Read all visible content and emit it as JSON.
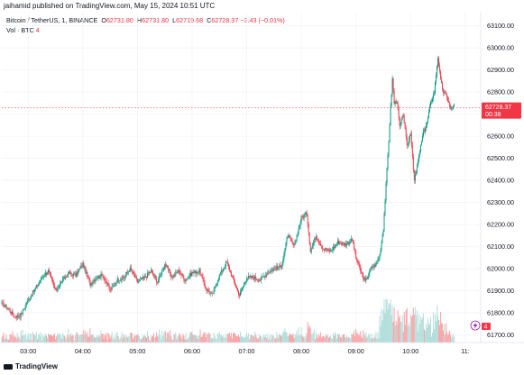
{
  "header": {
    "text": "jaihamid published on TradingView.com, May 15, 2024 10:51 UTC"
  },
  "legend": {
    "symbol": "Bitcoin / TetherUS, 1, BINANCE",
    "open_label": "O",
    "open_value": "62731.80",
    "high_label": "H",
    "high_value": "62731.80",
    "low_label": "L",
    "low_value": "62719.68",
    "close_label": "C",
    "close_value": "62728.37",
    "change": "−3.43 (−0.01%)",
    "volume_label": "Vol · BTC",
    "volume_value": "4"
  },
  "footer": {
    "logo_text": "TradingView"
  },
  "colors": {
    "up": "#089981",
    "down": "#f23645",
    "vol_up": "#b2dfdb",
    "vol_down": "#faa1a4",
    "last_price": "#f23645"
  },
  "chart_data": {
    "type": "candlestick",
    "y_ticks": [
      "63100.00",
      "63000.00",
      "62900.00",
      "62800.00",
      "62700.00",
      "62600.00",
      "62500.00",
      "62400.00",
      "62300.00",
      "62200.00",
      "62100.00",
      "62000.00",
      "61900.00",
      "61800.00",
      "61700.00"
    ],
    "y_tick_values": [
      63100,
      63000,
      62900,
      62800,
      62700,
      62600,
      62500,
      62400,
      62300,
      62200,
      62100,
      62000,
      61900,
      61800,
      61700
    ],
    "ylim": [
      61665,
      63160
    ],
    "x_ticks": [
      "03:00",
      "04:00",
      "05:00",
      "06:00",
      "07:00",
      "08:00",
      "09:00",
      "10:00",
      "11:"
    ],
    "x_tick_values": [
      180,
      240,
      300,
      360,
      420,
      480,
      540,
      600,
      660
    ],
    "xlim": [
      151,
      676
    ],
    "last_price": {
      "value": 62728.37,
      "label": "62728.37",
      "countdown": "00:38"
    },
    "volume_label": "4",
    "anchors": [
      [
        151,
        61840
      ],
      [
        158,
        61820
      ],
      [
        165,
        61780
      ],
      [
        172,
        61790
      ],
      [
        180,
        61860
      ],
      [
        188,
        61910
      ],
      [
        195,
        61960
      ],
      [
        202,
        61990
      ],
      [
        210,
        61900
      ],
      [
        218,
        61950
      ],
      [
        225,
        61980
      ],
      [
        232,
        61970
      ],
      [
        240,
        62020
      ],
      [
        248,
        61930
      ],
      [
        255,
        61960
      ],
      [
        262,
        61970
      ],
      [
        270,
        61900
      ],
      [
        278,
        61950
      ],
      [
        285,
        61960
      ],
      [
        292,
        62000
      ],
      [
        300,
        61940
      ],
      [
        308,
        61960
      ],
      [
        315,
        61990
      ],
      [
        322,
        61940
      ],
      [
        330,
        62020
      ],
      [
        338,
        61960
      ],
      [
        345,
        61990
      ],
      [
        352,
        61950
      ],
      [
        360,
        61980
      ],
      [
        368,
        61990
      ],
      [
        375,
        61910
      ],
      [
        382,
        61880
      ],
      [
        390,
        61970
      ],
      [
        398,
        62030
      ],
      [
        405,
        61950
      ],
      [
        412,
        61880
      ],
      [
        420,
        61960
      ],
      [
        428,
        61960
      ],
      [
        435,
        61950
      ],
      [
        442,
        61980
      ],
      [
        450,
        62000
      ],
      [
        458,
        62010
      ],
      [
        465,
        62150
      ],
      [
        472,
        62100
      ],
      [
        480,
        62230
      ],
      [
        486,
        62250
      ],
      [
        490,
        62080
      ],
      [
        496,
        62150
      ],
      [
        504,
        62090
      ],
      [
        512,
        62080
      ],
      [
        520,
        62120
      ],
      [
        528,
        62110
      ],
      [
        536,
        62130
      ],
      [
        540,
        62050
      ],
      [
        545,
        61990
      ],
      [
        550,
        61940
      ],
      [
        556,
        62000
      ],
      [
        562,
        62020
      ],
      [
        566,
        62060
      ],
      [
        570,
        62180
      ],
      [
        573,
        62380
      ],
      [
        576,
        62580
      ],
      [
        578,
        62730
      ],
      [
        580,
        62860
      ],
      [
        582,
        62750
      ],
      [
        585,
        62760
      ],
      [
        588,
        62640
      ],
      [
        592,
        62700
      ],
      [
        596,
        62550
      ],
      [
        600,
        62620
      ],
      [
        604,
        62400
      ],
      [
        607,
        62460
      ],
      [
        610,
        62530
      ],
      [
        614,
        62620
      ],
      [
        618,
        62660
      ],
      [
        622,
        62750
      ],
      [
        626,
        62800
      ],
      [
        630,
        62960
      ],
      [
        633,
        62850
      ],
      [
        636,
        62800
      ],
      [
        640,
        62780
      ],
      [
        644,
        62720
      ],
      [
        648,
        62740
      ]
    ]
  }
}
